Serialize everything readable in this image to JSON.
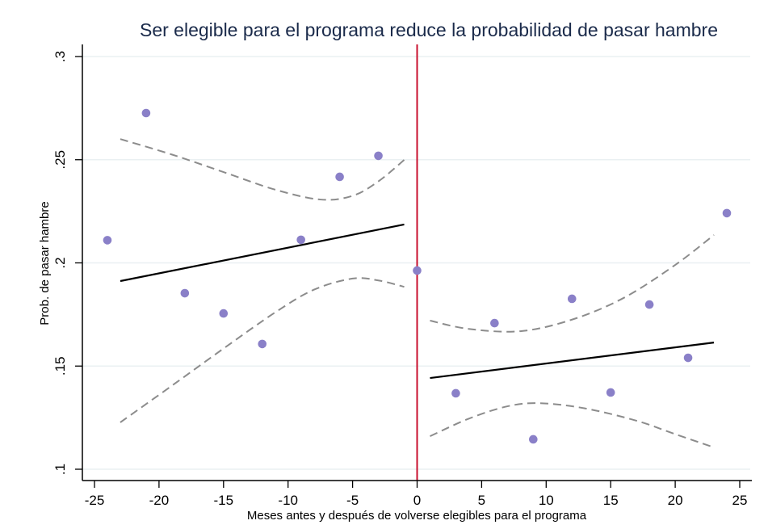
{
  "chart_data": {
    "type": "scatter",
    "title": "Ser elegible para el programa reduce la probabilidad de pasar hambre",
    "xlabel": "Meses antes y después de volverse elegibles para el programa",
    "ylabel": "Prob. de pasar hambre",
    "xlim": [
      -26,
      26
    ],
    "ylim": [
      0.095,
      0.305
    ],
    "xticks": [
      -25,
      -20,
      -15,
      -10,
      -5,
      0,
      5,
      10,
      15,
      20,
      25
    ],
    "xtick_labels": [
      "-25",
      "-20",
      "-15",
      "-10",
      "-5",
      "0",
      "5",
      "10",
      "15",
      "20",
      "25"
    ],
    "yticks": [
      0.1,
      0.15,
      0.2,
      0.25,
      0.3
    ],
    "ytick_labels": [
      ".1",
      ".15",
      ".2",
      ".25",
      ".3"
    ],
    "grid": true,
    "cutoff_x": 0,
    "colors": {
      "points": "#8a80c8",
      "fit": "#000000",
      "ci": "#8c8c8c",
      "cutoff": "#c8102e",
      "grid": "#eaf0f2"
    },
    "points": {
      "x": [
        -24,
        -21,
        -18,
        -15,
        -12,
        -9,
        -6,
        -3,
        0,
        3,
        6,
        9,
        12,
        15,
        18,
        21,
        24
      ],
      "y": [
        0.211,
        0.2726,
        0.1853,
        0.1755,
        0.1607,
        0.2112,
        0.2417,
        0.2519,
        0.1963,
        0.1368,
        0.1708,
        0.1145,
        0.1826,
        0.1372,
        0.1798,
        0.154,
        0.2241
      ]
    },
    "series": [
      {
        "name": "fit-left",
        "x": [
          -23,
          -1
        ],
        "y": [
          0.1912,
          0.2186
        ]
      },
      {
        "name": "fit-right",
        "x": [
          1,
          23
        ],
        "y": [
          0.1442,
          0.1614
        ]
      },
      {
        "name": "ci-upper-left",
        "x": [
          -23,
          -19,
          -15,
          -11,
          -7.5,
          -5,
          -3,
          -1
        ],
        "y": [
          0.26,
          0.2525,
          0.244,
          0.2355,
          0.2307,
          0.2325,
          0.2395,
          0.2499
        ]
      },
      {
        "name": "ci-lower-left",
        "x": [
          -23,
          -19,
          -15,
          -11,
          -8,
          -5,
          -3,
          -1
        ],
        "y": [
          0.1227,
          0.1405,
          0.1585,
          0.176,
          0.187,
          0.1924,
          0.1915,
          0.1884
        ]
      },
      {
        "name": "ci-upper-right",
        "x": [
          1,
          4,
          8,
          12,
          16,
          20,
          23
        ],
        "y": [
          0.172,
          0.168,
          0.1669,
          0.1725,
          0.183,
          0.199,
          0.2135
        ]
      },
      {
        "name": "ci-lower-right",
        "x": [
          1,
          4,
          7,
          9.5,
          13,
          17,
          20,
          23
        ],
        "y": [
          0.116,
          0.1245,
          0.1305,
          0.132,
          0.1295,
          0.1235,
          0.117,
          0.1106
        ]
      }
    ]
  }
}
